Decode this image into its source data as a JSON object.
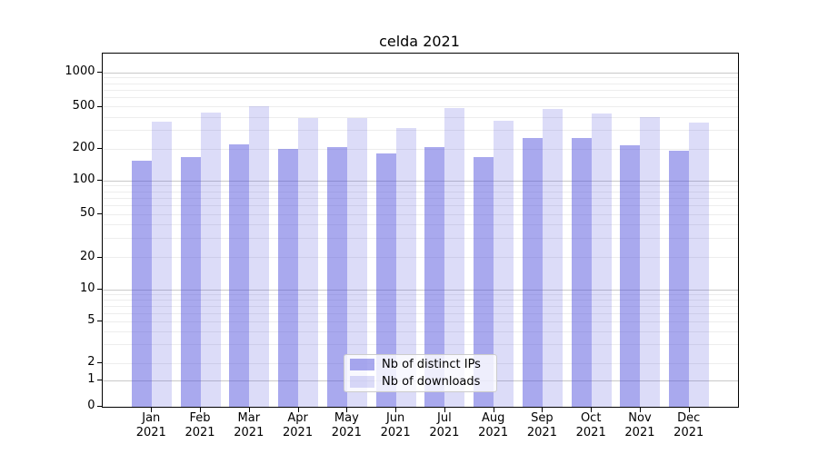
{
  "title": "celda 2021",
  "chart_data": {
    "type": "bar",
    "title": "celda 2021",
    "categories": [
      "Jan 2021",
      "Feb 2021",
      "Mar 2021",
      "Apr 2021",
      "May 2021",
      "Jun 2021",
      "Jul 2021",
      "Aug 2021",
      "Sep 2021",
      "Oct 2021",
      "Nov 2021",
      "Dec 2021"
    ],
    "series": [
      {
        "name": "Nb of distinct IPs",
        "color": "#5050dc7d",
        "values": [
          155,
          166,
          220,
          198,
          207,
          180,
          207,
          168,
          253,
          253,
          215,
          190
        ]
      },
      {
        "name": "Nb of downloads",
        "color": "#5050dc33",
        "values": [
          360,
          435,
          500,
          390,
          390,
          313,
          480,
          370,
          470,
          430,
          400,
          350
        ]
      }
    ],
    "xlabel": "",
    "ylabel": "",
    "yscale": "symlog",
    "y_ticks": [
      0,
      1,
      2,
      5,
      10,
      20,
      50,
      100,
      200,
      500,
      1000
    ],
    "ylim": [
      0,
      1400
    ],
    "grid": true,
    "legend_position": "lower center"
  }
}
